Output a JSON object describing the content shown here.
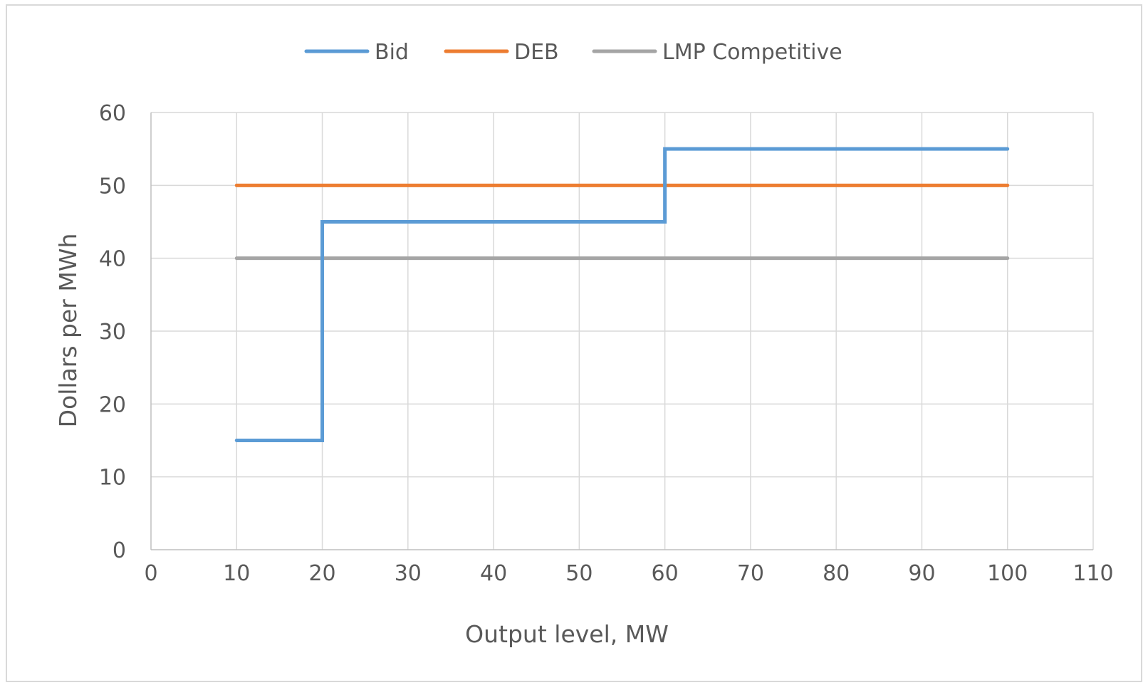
{
  "chart_data": {
    "type": "line",
    "title": "",
    "xlabel": "Output level, MW",
    "ylabel": "Dollars per MWh",
    "xlim": [
      0,
      110
    ],
    "ylim": [
      0,
      60
    ],
    "xticks": [
      0,
      10,
      20,
      30,
      40,
      50,
      60,
      70,
      80,
      90,
      100,
      110
    ],
    "yticks": [
      0,
      10,
      20,
      30,
      40,
      50,
      60
    ],
    "grid": true,
    "legend_position": "top",
    "series": [
      {
        "name": "Bid",
        "color": "#5b9bd5",
        "step": true,
        "points": [
          [
            10,
            15
          ],
          [
            20,
            15
          ],
          [
            20,
            45
          ],
          [
            60,
            45
          ],
          [
            60,
            55
          ],
          [
            100,
            55
          ]
        ]
      },
      {
        "name": "DEB",
        "color": "#ed7d31",
        "step": false,
        "points": [
          [
            10,
            50
          ],
          [
            100,
            50
          ]
        ]
      },
      {
        "name": "LMP Competitive",
        "color": "#a5a5a5",
        "step": false,
        "points": [
          [
            10,
            40
          ],
          [
            100,
            40
          ]
        ]
      }
    ]
  }
}
